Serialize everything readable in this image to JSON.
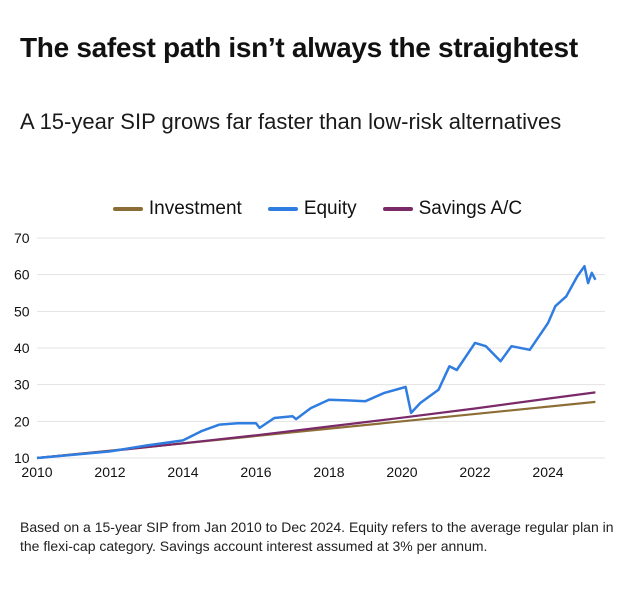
{
  "title": "The safest path isn’t always the straightest",
  "subtitle": "A 15-year SIP grows far faster than low-risk alternatives",
  "footnote": "Based on a 15-year SIP from Jan 2010 to Dec 2024. Equity refers to the average regular plan in the flexi-cap category. Savings account interest assumed at 3% per annum.",
  "chart_data": {
    "type": "line",
    "title": "The safest path isn’t always the straightest",
    "xlabel": "",
    "ylabel": "",
    "xlim": [
      2010,
      2025.3
    ],
    "ylim": [
      10,
      70
    ],
    "x_ticks": [
      "2010",
      "2012",
      "2014",
      "2016",
      "2018",
      "2020",
      "2022",
      "2024"
    ],
    "y_ticks": [
      "10",
      "20",
      "30",
      "40",
      "50",
      "60",
      "70"
    ],
    "grid": true,
    "legend": "top-center",
    "series": [
      {
        "name": "Investment",
        "color": "#8c6d35",
        "x": [
          2010,
          2025.3
        ],
        "y": [
          10,
          25.3
        ]
      },
      {
        "name": "Equity",
        "color": "#2f7de1",
        "x": [
          2010,
          2011,
          2012,
          2013,
          2014,
          2014.5,
          2015,
          2015.5,
          2016,
          2016.1,
          2016.5,
          2017,
          2017.1,
          2017.5,
          2018,
          2018.5,
          2019,
          2019.5,
          2020,
          2020.1,
          2020.25,
          2020.5,
          2021,
          2021.3,
          2021.5,
          2022,
          2022.3,
          2022.7,
          2023,
          2023.5,
          2024,
          2024.2,
          2024.5,
          2024.8,
          2025,
          2025.1,
          2025.2,
          2025.3
        ],
        "y": [
          10,
          10.9,
          11.8,
          13.4,
          14.8,
          17.3,
          19.1,
          19.5,
          19.5,
          18.2,
          20.9,
          21.4,
          20.6,
          23.6,
          25.9,
          25.7,
          25.5,
          27.7,
          29.1,
          29.4,
          22.3,
          25,
          28.6,
          35,
          34,
          41.4,
          40.5,
          36.4,
          40.5,
          39.5,
          46.8,
          51.4,
          54.1,
          59.5,
          62.3,
          57.7,
          60.5,
          58.6
        ]
      },
      {
        "name": "Savings A/C",
        "color": "#7a2a68",
        "x": [
          2010,
          2012,
          2014,
          2016,
          2018,
          2020,
          2022,
          2024,
          2025.3
        ],
        "y": [
          10,
          11.9,
          14,
          16.2,
          18.6,
          21,
          23.5,
          26.2,
          27.9
        ]
      }
    ]
  }
}
